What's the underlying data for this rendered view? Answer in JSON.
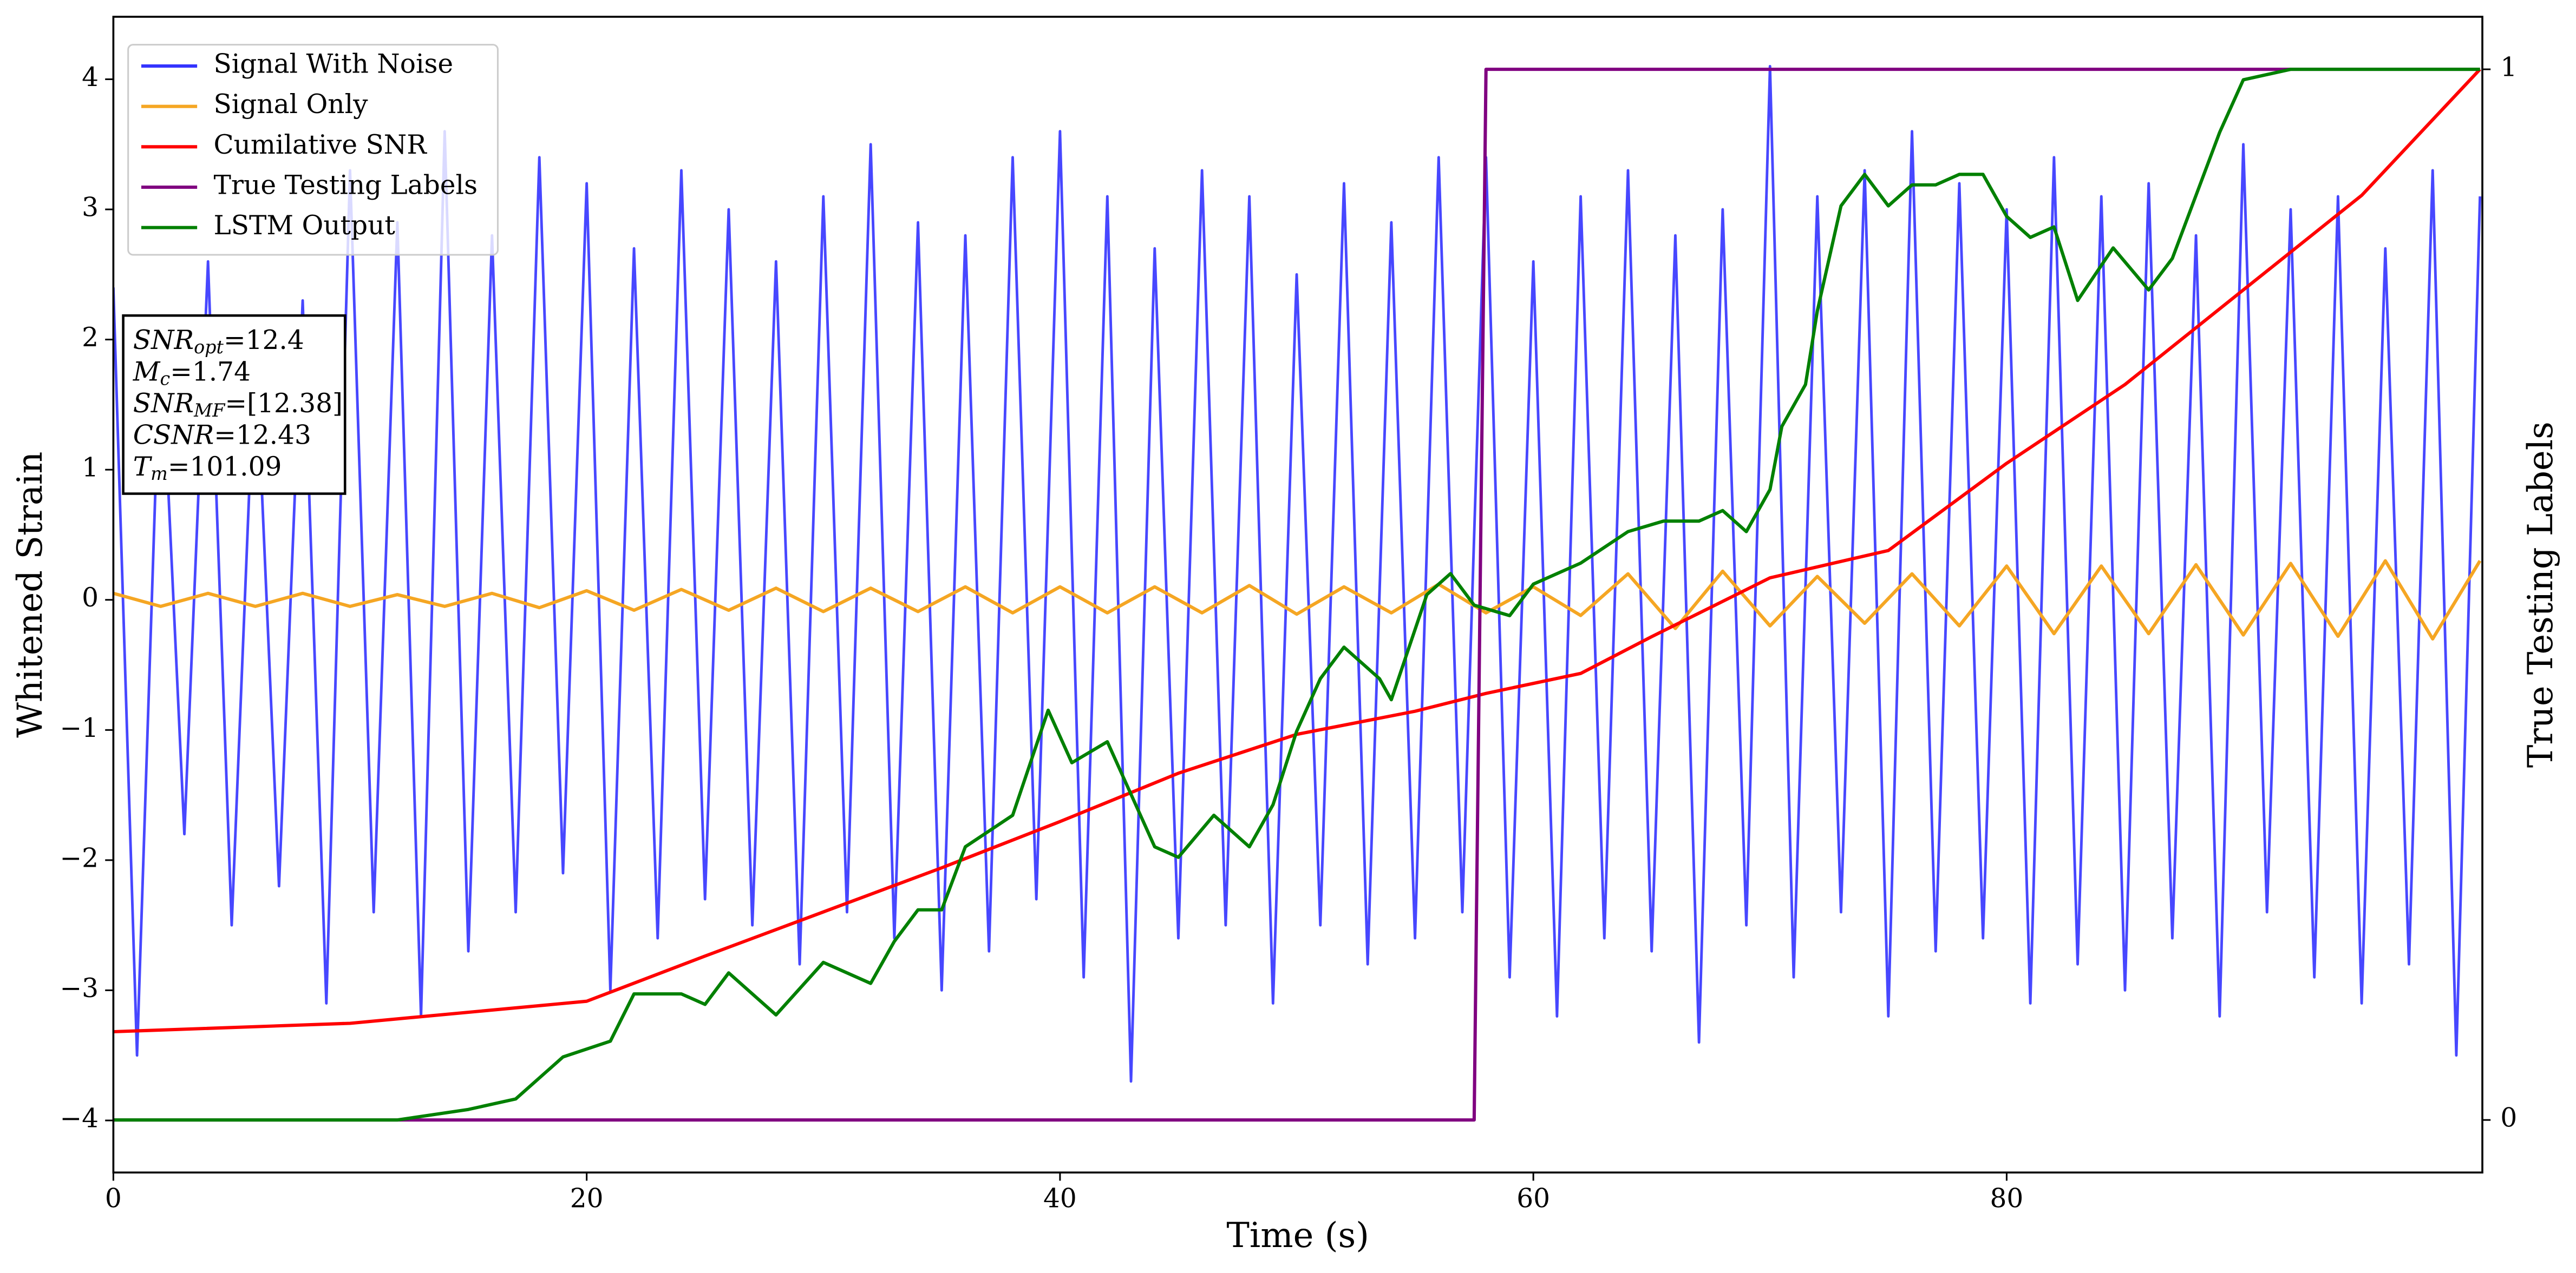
{
  "chart_data": {
    "type": "line",
    "xlabel": "Time (s)",
    "ylabel": "Whitened Strain",
    "y2label": "True Testing Labels",
    "xlim": [
      0,
      100.1
    ],
    "xticks": [
      0,
      20,
      40,
      60,
      80
    ],
    "ylim": [
      -4.4,
      4.48
    ],
    "yticks": [
      {
        "value": -4,
        "label": "−4"
      },
      {
        "value": -3,
        "label": "−3"
      },
      {
        "value": -2,
        "label": "−2"
      },
      {
        "value": -1,
        "label": "−1"
      },
      0,
      1,
      2,
      3,
      4
    ],
    "y2lim": [
      -0.05,
      1.05
    ],
    "y2ticks": [
      0,
      1
    ],
    "grid": false,
    "legend": "upper left",
    "series": [
      {
        "name": "Signal With Noise",
        "color": "#3333ff",
        "axis": "y",
        "x": [
          0,
          1,
          2,
          3,
          4,
          5,
          6,
          7,
          8,
          9,
          10,
          11,
          12,
          13,
          14,
          15,
          16,
          17,
          18,
          19,
          20,
          21,
          22,
          23,
          24,
          25,
          26,
          27,
          28,
          29,
          30,
          31,
          32,
          33,
          34,
          35,
          36,
          37,
          38,
          39,
          40,
          41,
          42,
          43,
          44,
          45,
          46,
          47,
          48,
          49,
          50,
          51,
          52,
          53,
          54,
          55,
          56,
          57,
          58,
          59,
          60,
          61,
          62,
          63,
          64,
          65,
          66,
          67,
          68,
          69,
          70,
          71,
          72,
          73,
          74,
          75,
          76,
          77,
          78,
          79,
          80,
          81,
          82,
          83,
          84,
          85,
          86,
          87,
          88,
          89,
          90,
          91,
          92,
          93,
          94,
          95,
          96,
          97,
          98,
          99,
          100
        ],
        "values": [
          2.4,
          -3.5,
          2.1,
          -1.8,
          2.6,
          -2.5,
          2.0,
          -2.2,
          2.3,
          -3.1,
          3.3,
          -2.4,
          2.9,
          -3.2,
          3.6,
          -2.7,
          2.8,
          -2.4,
          3.4,
          -2.1,
          3.2,
          -3.0,
          2.7,
          -2.6,
          3.3,
          -2.3,
          3.0,
          -2.5,
          2.6,
          -2.8,
          3.1,
          -2.4,
          3.5,
          -2.6,
          2.9,
          -3.0,
          2.8,
          -2.7,
          3.4,
          -2.3,
          3.6,
          -2.9,
          3.1,
          -3.7,
          2.7,
          -2.6,
          3.3,
          -2.5,
          3.1,
          -3.1,
          2.5,
          -2.5,
          3.2,
          -2.8,
          2.9,
          -2.6,
          3.4,
          -2.4,
          3.4,
          -2.9,
          2.6,
          -3.2,
          3.1,
          -2.6,
          3.3,
          -2.7,
          2.8,
          -3.4,
          3.0,
          -2.5,
          4.1,
          -2.9,
          3.1,
          -2.4,
          3.3,
          -3.2,
          3.6,
          -2.7,
          3.2,
          -2.6,
          3.0,
          -3.1,
          3.4,
          -2.8,
          3.1,
          -3.0,
          3.2,
          -2.6,
          2.8,
          -3.2,
          3.5,
          -2.4,
          3.0,
          -2.9,
          3.1,
          -3.1,
          2.7,
          -2.8,
          3.3,
          -3.5,
          3.1
        ]
      },
      {
        "name": "Signal Only",
        "color": "#f5a623",
        "axis": "y",
        "x": [
          0,
          2,
          4,
          6,
          8,
          10,
          12,
          14,
          16,
          18,
          20,
          22,
          24,
          26,
          28,
          30,
          32,
          34,
          36,
          38,
          40,
          42,
          44,
          46,
          48,
          50,
          52,
          54,
          56,
          58,
          60,
          62,
          64,
          66,
          68,
          70,
          72,
          74,
          76,
          78,
          80,
          82,
          84,
          86,
          88,
          90,
          92,
          94,
          96,
          98,
          100
        ],
        "values": [
          0.05,
          -0.05,
          0.05,
          -0.05,
          0.05,
          -0.05,
          0.04,
          -0.05,
          0.05,
          -0.06,
          0.07,
          -0.08,
          0.08,
          -0.08,
          0.09,
          -0.09,
          0.09,
          -0.09,
          0.1,
          -0.1,
          0.1,
          -0.1,
          0.1,
          -0.1,
          0.11,
          -0.11,
          0.1,
          -0.1,
          0.12,
          -0.1,
          0.1,
          -0.12,
          0.2,
          -0.22,
          0.22,
          -0.2,
          0.18,
          -0.18,
          0.2,
          -0.2,
          0.26,
          -0.26,
          0.26,
          -0.26,
          0.27,
          -0.27,
          0.28,
          -0.28,
          0.3,
          -0.3,
          0.3
        ]
      },
      {
        "name": "Cumilative SNR",
        "color": "#ff0000",
        "axis": "y2",
        "x": [
          0,
          10,
          20,
          25,
          30,
          35,
          40,
          45,
          50,
          55,
          58,
          62,
          65,
          70,
          75,
          80,
          85,
          90,
          95,
          100
        ],
        "values": [
          0.084,
          0.092,
          0.113,
          0.156,
          0.198,
          0.24,
          0.284,
          0.33,
          0.367,
          0.389,
          0.406,
          0.425,
          0.46,
          0.516,
          0.542,
          0.625,
          0.7,
          0.79,
          0.88,
          1.0
        ]
      },
      {
        "name": "True Testing Labels",
        "color": "#800080",
        "axis": "y2",
        "x": [
          0,
          57.5,
          58,
          100
        ],
        "values": [
          0,
          0,
          1,
          1
        ]
      },
      {
        "name": "LSTM Output",
        "color": "#008000",
        "axis": "y2",
        "x": [
          0,
          12,
          15,
          17,
          19,
          21,
          22,
          24,
          25,
          26,
          28,
          30,
          32,
          33,
          34,
          35,
          36,
          38,
          39.5,
          40.5,
          42,
          43,
          44,
          45,
          46.5,
          48,
          49,
          50,
          51,
          52,
          53.5,
          54,
          55.5,
          56.5,
          57.5,
          59,
          60,
          62,
          64,
          65.5,
          67,
          68,
          69,
          70,
          70.5,
          71.5,
          72,
          73,
          74,
          75,
          76,
          77,
          78,
          79,
          80,
          81,
          82,
          83,
          84.5,
          86,
          87,
          89,
          90,
          92,
          100
        ],
        "values": [
          0,
          0,
          0.01,
          0.02,
          0.06,
          0.075,
          0.12,
          0.12,
          0.11,
          0.14,
          0.1,
          0.15,
          0.13,
          0.17,
          0.2,
          0.2,
          0.26,
          0.29,
          0.39,
          0.34,
          0.36,
          0.31,
          0.26,
          0.25,
          0.29,
          0.26,
          0.3,
          0.37,
          0.42,
          0.45,
          0.42,
          0.4,
          0.5,
          0.52,
          0.49,
          0.48,
          0.51,
          0.53,
          0.56,
          0.57,
          0.57,
          0.58,
          0.56,
          0.6,
          0.66,
          0.7,
          0.77,
          0.87,
          0.9,
          0.87,
          0.89,
          0.89,
          0.9,
          0.9,
          0.86,
          0.84,
          0.85,
          0.78,
          0.83,
          0.79,
          0.82,
          0.94,
          0.99,
          1.0,
          1.0
        ]
      }
    ],
    "annotations": [
      {
        "name": "SNR",
        "sub": "opt",
        "text": "=12.4"
      },
      {
        "name": "M",
        "sub": "c",
        "text": "=1.74"
      },
      {
        "name": "SNR",
        "sub": "MF",
        "text": "=[12.38]"
      },
      {
        "name": "CSNR",
        "text": "=12.43"
      },
      {
        "name": "T",
        "sub": "m",
        "text": "=101.09"
      }
    ]
  }
}
